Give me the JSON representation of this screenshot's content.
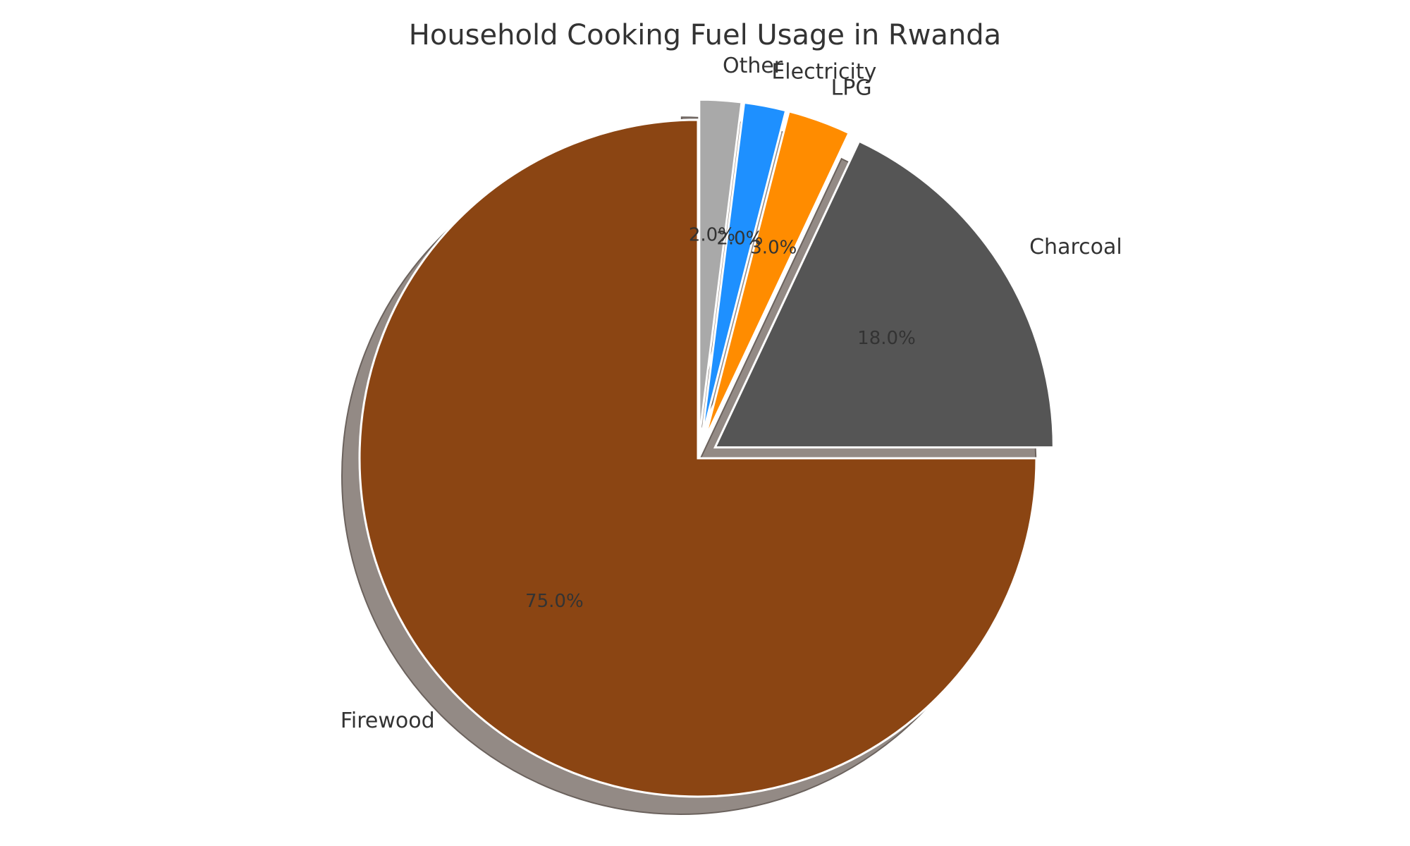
{
  "chart_data": {
    "type": "pie",
    "title": "Household Cooking Fuel Usage in Rwanda",
    "slices": [
      {
        "label": "Firewood",
        "value": 75.0,
        "pct_label": "75.0%",
        "color": "#8B4513",
        "exploded": false
      },
      {
        "label": "Charcoal",
        "value": 18.0,
        "pct_label": "18.0%",
        "color": "#555555",
        "exploded": true
      },
      {
        "label": "LPG",
        "value": 3.0,
        "pct_label": "3.0%",
        "color": "#FF8C00",
        "exploded": true
      },
      {
        "label": "Electricity",
        "value": 2.0,
        "pct_label": "2.0%",
        "color": "#1E90FF",
        "exploded": true
      },
      {
        "label": "Other",
        "value": 2.0,
        "pct_label": "2.0%",
        "color": "#A9A9A9",
        "exploded": true
      }
    ],
    "start_angle": "90 degrees, counterclockwise",
    "shadow": true,
    "legend": "none"
  }
}
